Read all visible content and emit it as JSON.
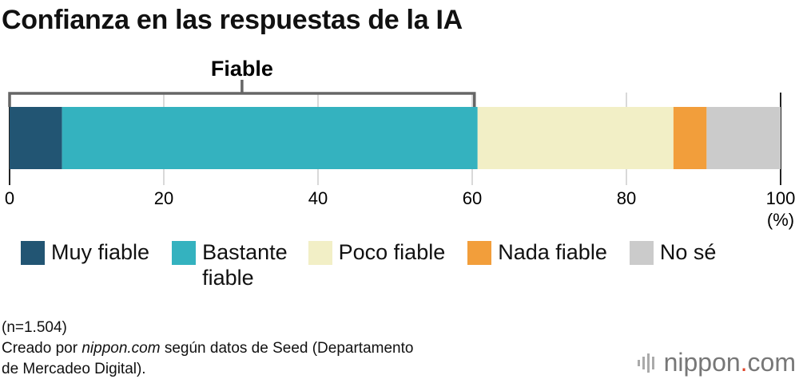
{
  "title": "Confianza en las respuestas de la IA",
  "chart_data": {
    "type": "bar",
    "orientation": "horizontal-stacked",
    "title": "Confianza en las respuestas de la IA",
    "series": [
      {
        "name": "Muy fiable",
        "values": [
          6.8
        ],
        "color": "#225573"
      },
      {
        "name": "Bastante fiable",
        "values": [
          53.9
        ],
        "color": "#34b2bf"
      },
      {
        "name": "Poco fiable",
        "values": [
          25.4
        ],
        "color": "#f2efc6"
      },
      {
        "name": "Nada fiable",
        "values": [
          4.3
        ],
        "color": "#f29e3b"
      },
      {
        "name": "No sé",
        "values": [
          9.6
        ],
        "color": "#cbcbcb"
      }
    ],
    "xlim": [
      0,
      100
    ],
    "xticks": [
      "0",
      "20",
      "40",
      "60",
      "80",
      "100"
    ],
    "xunit": "(%)",
    "grid": true,
    "legend": "bottom",
    "annotation": {
      "label": "Fiable",
      "range": [
        0,
        60.7
      ]
    }
  },
  "legend_items": [
    {
      "label": "Muy fiable",
      "color": "#225573"
    },
    {
      "label": "Bastante\nfiable",
      "color": "#34b2bf"
    },
    {
      "label": "Poco fiable",
      "color": "#f2efc6"
    },
    {
      "label": "Nada fiable",
      "color": "#f29e3b"
    },
    {
      "label": "No sé",
      "color": "#cbcbcb"
    }
  ],
  "notes": {
    "sample": "(n=1.504)",
    "source_prefix": "Creado por ",
    "source_site": "nippon.com",
    "source_suffix": " según datos de Seed (Departamento",
    "source_line2": "de Mercadeo Digital)."
  },
  "logo": {
    "name": "nippon",
    "dot": ".",
    "tld": "com"
  }
}
